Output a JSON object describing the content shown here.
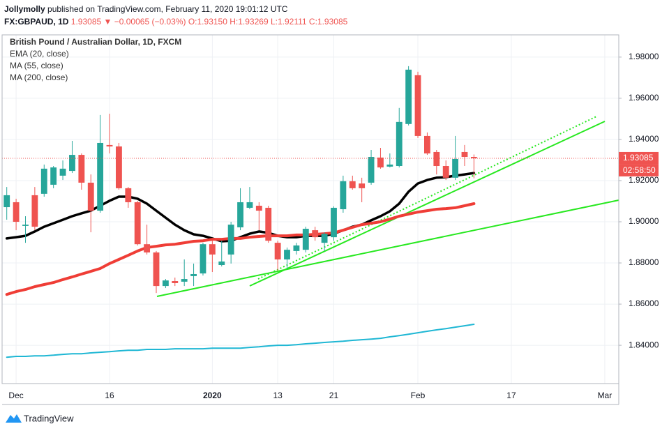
{
  "header": {
    "author": "Jollymolly",
    "published": "published on TradingView.com, February 11, 2020 19:01:12 UTC",
    "symbol": "FX:GBPAUD, 1D",
    "price": "1.93085",
    "change": "▼ −0.00065 (−0.03%)",
    "open": "O:1.93150",
    "high": "H:1.93269",
    "low": "L:1.92111",
    "close": "C:1.93085"
  },
  "footer": {
    "logo": "TradingView"
  },
  "chart_data": {
    "type": "candlestick",
    "title": "British Pound / Australian Dollar, 1D, FXCM",
    "categories": [
      null,
      "Dec",
      null,
      null,
      null,
      null,
      null,
      null,
      null,
      null,
      null,
      "16",
      null,
      null,
      null,
      null,
      null,
      null,
      null,
      null,
      null,
      null,
      "2020",
      null,
      null,
      null,
      null,
      null,
      null,
      "13",
      null,
      null,
      null,
      null,
      null,
      "21",
      null,
      null,
      null,
      null,
      null,
      null,
      null,
      null,
      "Feb",
      null,
      null,
      null,
      null,
      null,
      null,
      null,
      null,
      null,
      "17",
      null,
      null,
      null,
      null,
      null,
      null,
      null,
      null,
      null,
      "Mar",
      null
    ],
    "open": [
      1.9071,
      1.9095,
      1.898,
      1.9129,
      1.9136,
      1.918,
      1.9224,
      1.9247,
      1.9325,
      1.919,
      1.9054,
      1.9373,
      1.9366,
      1.9163,
      1.9095,
      1.8891,
      1.8851,
      1.8688,
      1.8712,
      1.8709,
      1.8736,
      1.8749,
      1.8891,
      1.879,
      1.8841,
      1.8973,
      1.9068,
      1.9078,
      1.9068,
      1.8898,
      1.8817,
      1.8858,
      1.8864,
      1.8959,
      1.8898,
      1.8925,
      1.9061,
      1.9197,
      1.9186,
      1.919,
      1.9312,
      1.9268,
      1.9271,
      1.9475,
      1.9712,
      1.9417,
      1.9339,
      1.9271,
      1.9214,
      1.9339,
      1.9315,
      null,
      null,
      null,
      null,
      null,
      null,
      null,
      null,
      null,
      null,
      null,
      null,
      null,
      null,
      null
    ],
    "high": [
      1.9169,
      1.9112,
      1.9027,
      1.9169,
      1.9278,
      1.9271,
      1.9298,
      1.9393,
      1.9332,
      1.923,
      1.9519,
      1.9525,
      1.9383,
      1.9169,
      1.9102,
      1.8986,
      1.8858,
      1.8722,
      1.8729,
      1.8817,
      1.8797,
      1.8898,
      1.8908,
      1.8908,
      1.9,
      1.9163,
      1.9169,
      1.9095,
      1.9078,
      1.8908,
      1.8875,
      1.8898,
      1.8976,
      1.8976,
      1.8949,
      1.9075,
      1.9224,
      1.9224,
      1.9214,
      1.9349,
      1.9359,
      1.9332,
      1.9553,
      1.9756,
      1.9729,
      1.9434,
      1.9349,
      1.9298,
      1.9417,
      1.9373,
      1.93269,
      null,
      null,
      null,
      null,
      null,
      null,
      null,
      null,
      null,
      null,
      null,
      null,
      null,
      null,
      null
    ],
    "low": [
      1.901,
      1.8959,
      1.8898,
      1.8959,
      1.9122,
      1.9163,
      1.9203,
      1.9237,
      1.9156,
      1.8949,
      1.9044,
      1.9332,
      1.9156,
      1.9068,
      1.8885,
      1.8841,
      1.8654,
      1.8678,
      1.8688,
      1.8688,
      1.8688,
      1.8739,
      1.8756,
      1.8783,
      1.8797,
      1.8959,
      1.9061,
      1.8959,
      1.8898,
      1.8763,
      1.877,
      1.8841,
      1.8851,
      1.8908,
      1.8858,
      1.8908,
      1.9044,
      1.9156,
      1.9095,
      1.918,
      1.9258,
      1.9264,
      1.9264,
      1.9468,
      1.9407,
      1.9325,
      1.923,
      1.9203,
      1.9203,
      1.9271,
      1.92111,
      null,
      null,
      null,
      null,
      null,
      null,
      null,
      null,
      null,
      null,
      null,
      null,
      null,
      null,
      null
    ],
    "close": [
      1.9129,
      1.9,
      1.8986,
      1.8976,
      1.9258,
      1.9264,
      1.9258,
      1.9325,
      1.919,
      1.9054,
      1.9383,
      1.9366,
      1.9163,
      1.9095,
      1.8891,
      1.8851,
      1.8688,
      1.8715,
      1.8702,
      1.8722,
      1.8746,
      1.8891,
      1.8841,
      1.8807,
      1.8986,
      1.9095,
      1.9095,
      1.9054,
      1.8908,
      1.8817,
      1.8864,
      1.8885,
      1.8966,
      1.8925,
      1.8942,
      1.9068,
      1.9197,
      1.9163,
      1.9163,
      1.9315,
      1.9264,
      1.9278,
      1.9485,
      1.9739,
      1.9417,
      1.9332,
      1.9271,
      1.9214,
      1.9305,
      1.9315,
      1.93085,
      null,
      null,
      null,
      null,
      null,
      null,
      null,
      null,
      null,
      null,
      null,
      null,
      null,
      null,
      null
    ],
    "up_color": "#26a69a",
    "down_color": "#ef5350",
    "lines": [
      {
        "name": "EMA (20, close)",
        "color": "#000000",
        "width": 3.5,
        "values": [
          1.8919,
          1.8925,
          1.8932,
          1.8953,
          1.8976,
          1.8993,
          1.901,
          1.9027,
          1.9041,
          1.9054,
          1.9078,
          1.9102,
          1.9122,
          1.9122,
          1.9112,
          1.9088,
          1.9054,
          1.902,
          1.8986,
          1.8959,
          1.8939,
          1.8932,
          1.8919,
          1.8905,
          1.8908,
          1.8925,
          1.8942,
          1.8953,
          1.8946,
          1.8932,
          1.8925,
          1.8925,
          1.8932,
          1.8932,
          1.8932,
          1.8942,
          1.8959,
          1.8976,
          1.8986,
          1.9007,
          1.9027,
          1.9051,
          1.9088,
          1.9146,
          1.9186,
          1.9203,
          1.9214,
          1.9217,
          1.9224,
          1.923,
          1.9237,
          null,
          null,
          null,
          null,
          null,
          null,
          null,
          null,
          null,
          null,
          null,
          null,
          null,
          null,
          null
        ]
      },
      {
        "name": "MA (55, close)",
        "color": "#ef3d36",
        "width": 4,
        "values": [
          1.8647,
          1.8661,
          1.8671,
          1.8685,
          1.8695,
          1.8705,
          1.8719,
          1.8732,
          1.8746,
          1.8759,
          1.8773,
          1.8797,
          1.8817,
          1.8837,
          1.8858,
          1.8875,
          1.8881,
          1.8888,
          1.8891,
          1.8898,
          1.8905,
          1.8908,
          1.8915,
          1.8915,
          1.8919,
          1.8919,
          1.8925,
          1.8929,
          1.8932,
          1.8932,
          1.8932,
          1.8936,
          1.8936,
          1.8939,
          1.8942,
          1.8946,
          1.8959,
          1.8973,
          1.8986,
          1.8993,
          1.9,
          1.9013,
          1.9027,
          1.9037,
          1.9047,
          1.9054,
          1.9061,
          1.9064,
          1.9068,
          1.9078,
          1.9088,
          null,
          null,
          null,
          null,
          null,
          null,
          null,
          null,
          null,
          null,
          null,
          null,
          null,
          null,
          null
        ]
      },
      {
        "name": "MA (200, close)",
        "color": "#1fb7d4",
        "width": 2,
        "values": [
          1.8342,
          1.8346,
          1.8346,
          1.8349,
          1.8349,
          1.8352,
          1.8356,
          1.8359,
          1.8359,
          1.8363,
          1.8366,
          1.8369,
          1.8373,
          1.8376,
          1.8376,
          1.838,
          1.838,
          1.838,
          1.8383,
          1.8383,
          1.8383,
          1.8383,
          1.8386,
          1.8386,
          1.8386,
          1.8386,
          1.839,
          1.8393,
          1.8397,
          1.84,
          1.84,
          1.8403,
          1.8407,
          1.841,
          1.8414,
          1.8417,
          1.842,
          1.8424,
          1.8427,
          1.843,
          1.8434,
          1.8441,
          1.8447,
          1.8454,
          1.8461,
          1.8468,
          1.8475,
          1.8481,
          1.8488,
          1.8495,
          1.8502,
          null,
          null,
          null,
          null,
          null,
          null,
          null,
          null,
          null,
          null,
          null,
          null,
          null,
          null,
          null
        ]
      }
    ],
    "price_label": "1.93085",
    "countdown": "02:58:50",
    "ylim": [
      1.8214,
      1.9908
    ],
    "yticks": [
      {
        "value": 1.84,
        "label": "1.84000"
      },
      {
        "value": 1.86,
        "label": "1.86000"
      },
      {
        "value": 1.88,
        "label": "1.88000"
      },
      {
        "value": 1.9,
        "label": "1.90000"
      },
      {
        "value": 1.92,
        "label": "1.92000"
      },
      {
        "value": 1.94,
        "label": "1.94000"
      },
      {
        "value": 1.96,
        "label": "1.96000"
      },
      {
        "value": 1.98,
        "label": "1.98000"
      }
    ],
    "grid": true
  }
}
